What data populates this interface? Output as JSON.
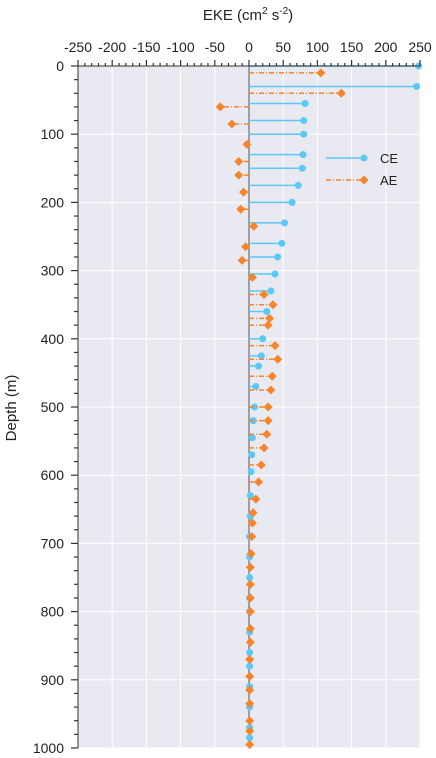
{
  "chart_data": {
    "type": "line",
    "title": "",
    "xlabel": {
      "base": "EKE (cm",
      "sup1": "2",
      "mid": " s",
      "sup2": "-2",
      "end": ")"
    },
    "ylabel": "Depth (m)",
    "xlim": [
      -250,
      250
    ],
    "ylim": [
      1000,
      0
    ],
    "x_ticks": [
      "-250",
      "-200",
      "-150",
      "-100",
      "-50",
      "0",
      "50",
      "100",
      "150",
      "200",
      "250"
    ],
    "y_ticks": [
      "0",
      "100",
      "200",
      "300",
      "400",
      "500",
      "600",
      "700",
      "800",
      "900",
      "1000"
    ],
    "grid": true,
    "legend_position": "upper right",
    "series": [
      {
        "name": "CE",
        "color": "#5bc8f5",
        "line_style": "solid",
        "marker": "circle",
        "depth": [
          0,
          30,
          55,
          80,
          100,
          130,
          150,
          175,
          200,
          230,
          260,
          280,
          305,
          330,
          360,
          400,
          425,
          440,
          470,
          500,
          520,
          545,
          570,
          595,
          630,
          660,
          690,
          720,
          750,
          780,
          800,
          830,
          860,
          880,
          910,
          940,
          970,
          985
        ],
        "values": [
          248,
          245,
          82,
          80,
          80,
          79,
          78,
          72,
          63,
          52,
          48,
          42,
          38,
          32,
          26,
          20,
          18,
          14,
          10,
          8,
          6,
          5,
          4,
          3,
          2,
          2,
          1,
          1,
          1,
          1,
          1,
          1,
          1,
          1,
          1,
          1,
          1,
          1
        ]
      },
      {
        "name": "AE",
        "color": "#f5842a",
        "line_style": "dashdot",
        "marker": "diamond",
        "depth": [
          10,
          40,
          60,
          85,
          115,
          140,
          160,
          185,
          210,
          235,
          265,
          285,
          310,
          335,
          350,
          370,
          380,
          410,
          430,
          455,
          475,
          500,
          520,
          540,
          560,
          585,
          610,
          635,
          655,
          670,
          690,
          715,
          735,
          760,
          780,
          800,
          825,
          845,
          870,
          895,
          915,
          935,
          960,
          975,
          995
        ],
        "values": [
          105,
          135,
          -42,
          -25,
          -3,
          -15,
          -15,
          -8,
          -12,
          7,
          -5,
          -10,
          5,
          22,
          35,
          30,
          28,
          38,
          42,
          34,
          32,
          28,
          28,
          26,
          22,
          18,
          14,
          10,
          6,
          5,
          4,
          3,
          2,
          2,
          2,
          2,
          2,
          2,
          1,
          1,
          1,
          1,
          1,
          1,
          1
        ]
      }
    ]
  }
}
